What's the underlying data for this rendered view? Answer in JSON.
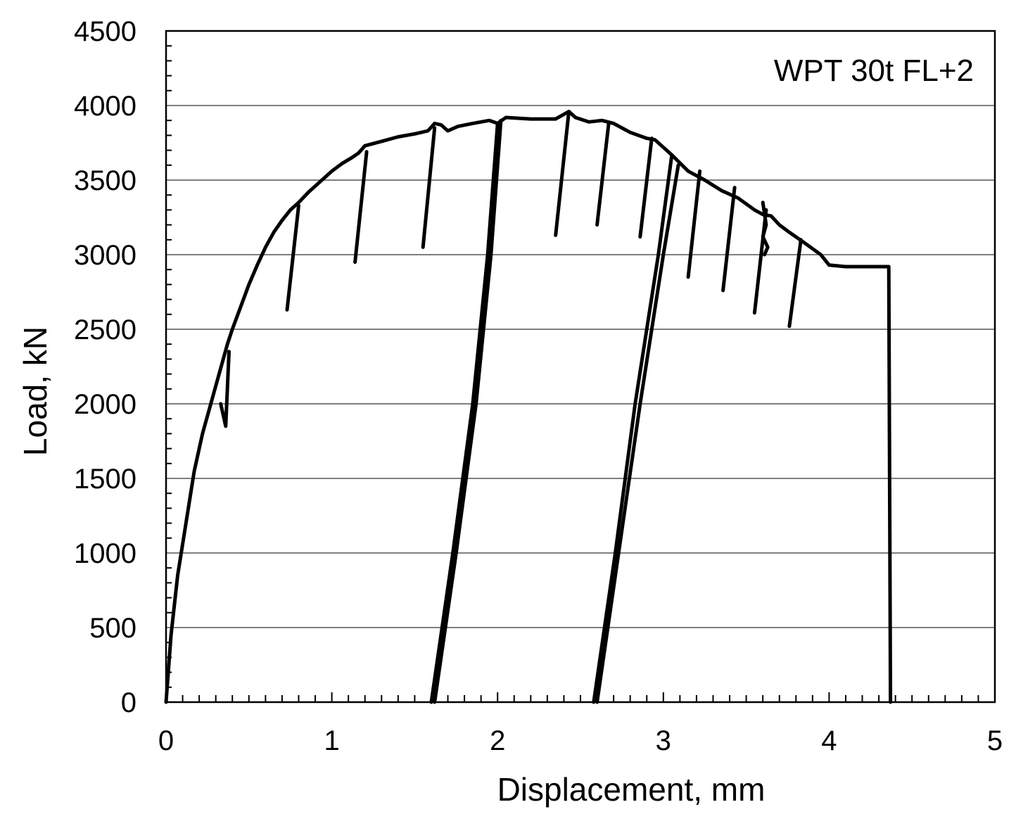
{
  "chart_data": {
    "type": "line",
    "annotation": "WPT 30t FL+2",
    "xlabel": "Displacement, mm",
    "ylabel": "Load, kN",
    "xlim": [
      0,
      5
    ],
    "ylim": [
      0,
      4500
    ],
    "x_ticks": [
      "0",
      "1",
      "2",
      "3",
      "4",
      "5"
    ],
    "y_ticks": [
      "0",
      "500",
      "1000",
      "1500",
      "2000",
      "2500",
      "3000",
      "3500",
      "4000",
      "4500"
    ],
    "x_tick_values": [
      0,
      1,
      2,
      3,
      4,
      5
    ],
    "y_tick_values": [
      0,
      500,
      1000,
      1500,
      2000,
      2500,
      3000,
      3500,
      4000,
      4500
    ],
    "grid": "horizontal",
    "legend": "none",
    "line_color": "#000000",
    "series": [
      {
        "x": [
          0.0,
          0.03,
          0.07,
          0.12,
          0.17,
          0.22,
          0.27,
          0.32,
          0.37,
          0.4,
          0.45,
          0.5,
          0.55,
          0.6,
          0.65,
          0.7,
          0.75,
          0.8,
          0.86,
          0.92,
          1.0,
          1.06,
          1.12,
          1.16,
          1.2,
          1.3,
          1.4,
          1.5,
          1.58,
          1.62,
          1.66,
          1.7,
          1.76,
          1.85,
          1.95,
          2.0,
          2.05,
          2.2,
          2.35,
          2.43,
          2.47,
          2.55,
          2.63,
          2.7,
          2.8,
          2.9,
          2.95,
          3.05,
          3.15,
          3.25,
          3.35,
          3.45,
          3.55,
          3.6,
          3.65,
          3.7,
          3.76,
          3.85,
          3.95,
          4.0,
          4.1,
          4.2,
          4.3,
          4.36,
          4.37
        ],
        "y": [
          0,
          450,
          850,
          1200,
          1550,
          1800,
          2000,
          2200,
          2400,
          2500,
          2650,
          2800,
          2930,
          3050,
          3150,
          3230,
          3300,
          3350,
          3420,
          3480,
          3560,
          3610,
          3650,
          3680,
          3730,
          3760,
          3790,
          3810,
          3830,
          3880,
          3870,
          3830,
          3860,
          3880,
          3900,
          3880,
          3920,
          3910,
          3910,
          3960,
          3920,
          3890,
          3900,
          3880,
          3820,
          3780,
          3770,
          3670,
          3560,
          3500,
          3430,
          3380,
          3300,
          3270,
          3260,
          3200,
          3150,
          3080,
          3000,
          2930,
          2920,
          2920,
          2920,
          2920,
          0
        ]
      }
    ],
    "segments": [
      {
        "x": [
          0.33,
          0.36,
          0.38
        ],
        "y": [
          2000,
          1850,
          2350
        ]
      },
      {
        "x": [
          0.8,
          0.73
        ],
        "y": [
          3330,
          2630
        ]
      },
      {
        "x": [
          1.21,
          1.14
        ],
        "y": [
          3690,
          2950
        ]
      },
      {
        "x": [
          1.62,
          1.55
        ],
        "y": [
          3850,
          3050
        ]
      },
      {
        "x": [
          1.6,
          1.73,
          1.85,
          1.94,
          2.0
        ],
        "y": [
          0,
          1000,
          2000,
          3000,
          3880
        ]
      },
      {
        "x": [
          1.62,
          1.75,
          1.87,
          1.96,
          2.02
        ],
        "y": [
          0,
          1000,
          2000,
          3000,
          3900
        ]
      },
      {
        "x": [
          2.43,
          2.35
        ],
        "y": [
          3960,
          3130
        ]
      },
      {
        "x": [
          2.67,
          2.6
        ],
        "y": [
          3880,
          3200
        ]
      },
      {
        "x": [
          2.93,
          2.86
        ],
        "y": [
          3780,
          3120
        ]
      },
      {
        "x": [
          2.58,
          2.71,
          2.83,
          2.97,
          3.05
        ],
        "y": [
          0,
          1000,
          2000,
          3000,
          3660
        ]
      },
      {
        "x": [
          2.6,
          2.73,
          2.86,
          3.0,
          3.09
        ],
        "y": [
          0,
          1000,
          2000,
          3000,
          3600
        ]
      },
      {
        "x": [
          3.22,
          3.15
        ],
        "y": [
          3560,
          2850
        ]
      },
      {
        "x": [
          3.43,
          3.36
        ],
        "y": [
          3450,
          2760
        ]
      },
      {
        "x": [
          3.62,
          3.55
        ],
        "y": [
          3300,
          2610
        ]
      },
      {
        "x": [
          3.83,
          3.76
        ],
        "y": [
          3100,
          2520
        ]
      },
      {
        "x": [
          3.6,
          3.62,
          3.6,
          3.63,
          3.61
        ],
        "y": [
          3350,
          3200,
          3120,
          3050,
          3000
        ]
      }
    ]
  }
}
